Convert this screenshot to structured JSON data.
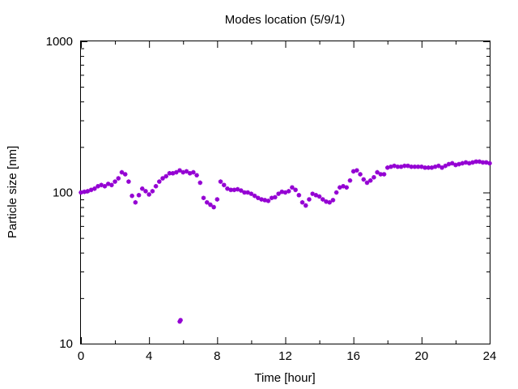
{
  "chart_data": {
    "type": "scatter",
    "title": "Modes location (5/9/1)",
    "xlabel": "Time [hour]",
    "ylabel": "Particle size [nm]",
    "xlim": [
      0,
      24
    ],
    "ylim": [
      10,
      1000
    ],
    "yscale": "log",
    "xticks": [
      0,
      4,
      8,
      12,
      16,
      20,
      24
    ],
    "xtick_labels": [
      "0",
      "4",
      "8",
      "12",
      "16",
      "20",
      "24"
    ],
    "yticks": [
      10,
      100,
      1000
    ],
    "ytick_labels": [
      "10",
      "100",
      "1000"
    ],
    "grid": false,
    "marker_color": "#9400d3",
    "series": [
      {
        "x": [
          0.0,
          0.2,
          0.4,
          0.6,
          0.8,
          1.0,
          1.2,
          1.4,
          1.6,
          1.8,
          2.0,
          2.2,
          2.4,
          2.6,
          2.8,
          3.0,
          3.2,
          3.4,
          3.6,
          3.8,
          4.0,
          4.2,
          4.4,
          4.6,
          4.8,
          5.0,
          5.2,
          5.4,
          5.6,
          5.8,
          6.0,
          6.2,
          6.4,
          6.6,
          6.8,
          7.0,
          7.2,
          7.4,
          7.6,
          7.8,
          8.0,
          8.2,
          8.4,
          8.6,
          8.8,
          9.0,
          9.2,
          9.4,
          9.6,
          9.8,
          10.0,
          10.2,
          10.4,
          10.6,
          10.8,
          11.0,
          11.2,
          11.4,
          11.6,
          11.8,
          12.0,
          12.2,
          12.4,
          12.6,
          12.8,
          13.0,
          13.2,
          13.4,
          13.6,
          13.8,
          14.0,
          14.2,
          14.4,
          14.6,
          14.8,
          15.0,
          15.2,
          15.4,
          15.6,
          15.8,
          16.0,
          16.2,
          16.4,
          16.6,
          16.8,
          17.0,
          17.2,
          17.4,
          17.6,
          17.8,
          18.0,
          18.2,
          18.4,
          18.6,
          18.8,
          19.0,
          19.2,
          19.4,
          19.6,
          19.8,
          20.0,
          20.2,
          20.4,
          20.6,
          20.8,
          21.0,
          21.2,
          21.4,
          21.6,
          21.8,
          22.0,
          22.2,
          22.4,
          22.6,
          22.8,
          23.0,
          23.2,
          23.4,
          23.6,
          23.8,
          24.0,
          5.8,
          5.85
        ],
        "y": [
          100,
          101,
          102,
          104,
          106,
          110,
          112,
          110,
          114,
          112,
          118,
          124,
          136,
          132,
          118,
          95,
          86,
          96,
          106,
          102,
          97,
          102,
          110,
          118,
          124,
          128,
          134,
          134,
          136,
          140,
          136,
          138,
          134,
          136,
          130,
          116,
          92,
          86,
          83,
          80,
          90,
          118,
          112,
          106,
          104,
          104,
          105,
          103,
          100,
          100,
          98,
          95,
          92,
          90,
          89,
          88,
          92,
          93,
          98,
          101,
          100,
          102,
          108,
          104,
          96,
          86,
          82,
          90,
          98,
          96,
          94,
          90,
          87,
          86,
          89,
          100,
          108,
          110,
          108,
          120,
          138,
          140,
          132,
          122,
          116,
          120,
          126,
          136,
          132,
          132,
          146,
          148,
          150,
          148,
          148,
          150,
          150,
          148,
          148,
          148,
          148,
          146,
          146,
          146,
          148,
          150,
          146,
          150,
          154,
          156,
          152,
          154,
          156,
          158,
          156,
          158,
          160,
          160,
          158,
          158,
          156,
          14,
          14.3
        ]
      }
    ]
  }
}
